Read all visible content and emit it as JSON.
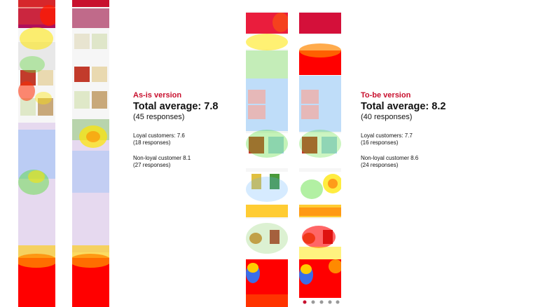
{
  "as_is": {
    "version_label": "As-is version",
    "total_label": "Total average: 7.8",
    "total_responses": "(45 responses)",
    "loyal": "Loyal customers: 7.6",
    "loyal_responses": "(18 responses)",
    "nonloyal": "Non-loyal customer 8.1",
    "nonloyal_responses": "(27 responses)"
  },
  "to_be": {
    "version_label": "To-be version",
    "total_label": "Total average: 8.2",
    "total_responses": "(40 responses)",
    "loyal": "Loyal customers: 7.7",
    "loyal_responses": "(16 responses)",
    "nonloyal": "Non-loyal customer 8.6",
    "nonloyal_responses": "(24 responses)"
  },
  "colors": {
    "accent": "#c8102e",
    "heat_hot": "#ff0000",
    "heat_warm": "#ffe600",
    "heat_mid": "#44dd44",
    "heat_cool": "#3aa0ff"
  }
}
